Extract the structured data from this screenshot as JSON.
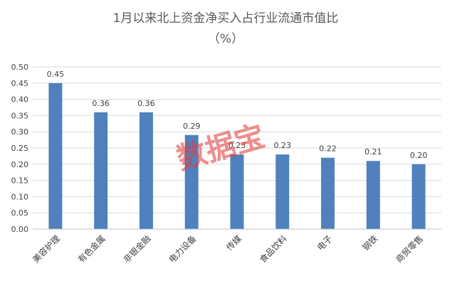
{
  "title": "1月以来北上资金净买入占行业流通市值比",
  "subtitle": "（%）",
  "watermark": "数据宝",
  "colors": {
    "bar": "#4f81bd",
    "grid": "#d9d9d9",
    "axis": "#bfbfbf",
    "text": "#404040",
    "title": "#595959"
  },
  "chart_data": {
    "type": "bar",
    "title": "1月以来北上资金净买入占行业流通市值比",
    "subtitle": "（%）",
    "xlabel": "",
    "ylabel": "",
    "categories": [
      "美容护理",
      "有色金属",
      "非银金融",
      "电力设备",
      "传媒",
      "食品饮料",
      "电子",
      "钢铁",
      "商贸零售"
    ],
    "values": [
      0.45,
      0.36,
      0.36,
      0.29,
      0.23,
      0.23,
      0.22,
      0.21,
      0.2
    ],
    "data_labels": [
      "0.45",
      "0.36",
      "0.36",
      "0.29",
      "0.23",
      "0.23",
      "0.22",
      "0.21",
      "0.20"
    ],
    "ylim": [
      0,
      0.5
    ],
    "yticks": [
      "0.00",
      "0.05",
      "0.10",
      "0.15",
      "0.20",
      "0.25",
      "0.30",
      "0.35",
      "0.40",
      "0.45",
      "0.50"
    ],
    "grid": true,
    "legend": "none"
  }
}
